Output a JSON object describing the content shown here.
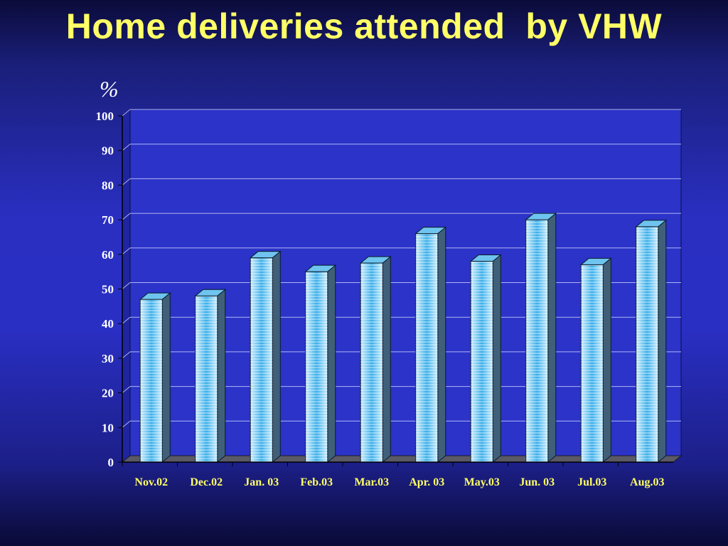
{
  "slide": {
    "title": "Home deliveries attended  by VHW"
  },
  "chart_data": {
    "type": "bar",
    "title": "Home deliveries attended  by VHW",
    "ylabel": "%",
    "xlabel": "",
    "categories": [
      "Nov.02",
      "Dec.02",
      "Jan. 03",
      "Feb.03",
      "Mar.03",
      "Apr. 03",
      "May.03",
      "Jun. 03",
      "Jul.03",
      "Aug.03"
    ],
    "values": [
      47,
      48,
      59,
      55,
      57.5,
      66,
      58,
      70,
      57,
      68
    ],
    "ylim": [
      0,
      100
    ],
    "yticks": [
      "0",
      "10",
      "20",
      "30",
      "40",
      "50",
      "60",
      "70",
      "80",
      "90",
      "100"
    ],
    "grid": true,
    "style": "3d-cylinder",
    "colors": {
      "title": "#ffff66",
      "category_labels": "#ffff66",
      "tick_labels": "#ffffff",
      "bar": "#a8dcf4",
      "bar_core": "#2fa8e8",
      "gridline": "#c8ccff"
    }
  }
}
